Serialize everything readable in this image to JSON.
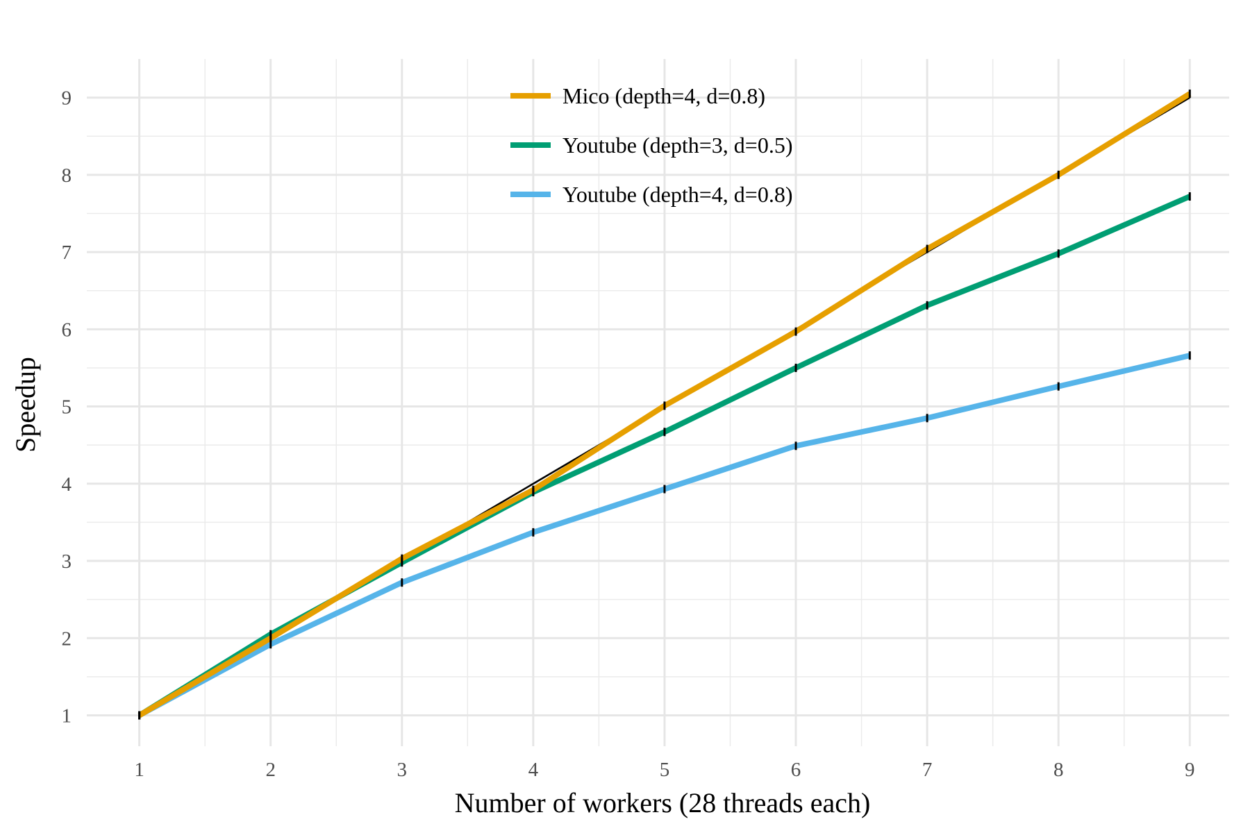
{
  "chart_data": {
    "type": "line",
    "xlabel": "Number of workers (28 threads each)",
    "ylabel": "Speedup",
    "x": [
      1,
      2,
      3,
      4,
      5,
      6,
      7,
      8,
      9
    ],
    "xlim": [
      0.6,
      9.3
    ],
    "ylim": [
      0.6,
      9.5
    ],
    "x_ticks": [
      1,
      2,
      3,
      4,
      5,
      6,
      7,
      8,
      9
    ],
    "y_ticks": [
      1,
      2,
      3,
      4,
      5,
      6,
      7,
      8,
      9
    ],
    "grid": true,
    "legend_position": "top-center",
    "reference_line": {
      "x": [
        1,
        9
      ],
      "y": [
        1,
        9
      ],
      "color": "#000000"
    },
    "series": [
      {
        "name": "Mico (depth=4, d=0.8)",
        "color": "#E69F00",
        "values": [
          1.0,
          2.0,
          3.03,
          3.92,
          5.01,
          5.97,
          7.04,
          8.0,
          9.05
        ]
      },
      {
        "name": "Youtube (depth=3, d=0.5)",
        "color": "#009E73",
        "values": [
          1.0,
          2.05,
          2.98,
          3.89,
          4.67,
          5.5,
          6.31,
          6.98,
          7.72
        ]
      },
      {
        "name": "Youtube (depth=4, d=0.8)",
        "color": "#56B4E9",
        "values": [
          1.0,
          1.92,
          2.72,
          3.37,
          3.93,
          4.49,
          4.85,
          5.26,
          5.66
        ]
      }
    ]
  }
}
